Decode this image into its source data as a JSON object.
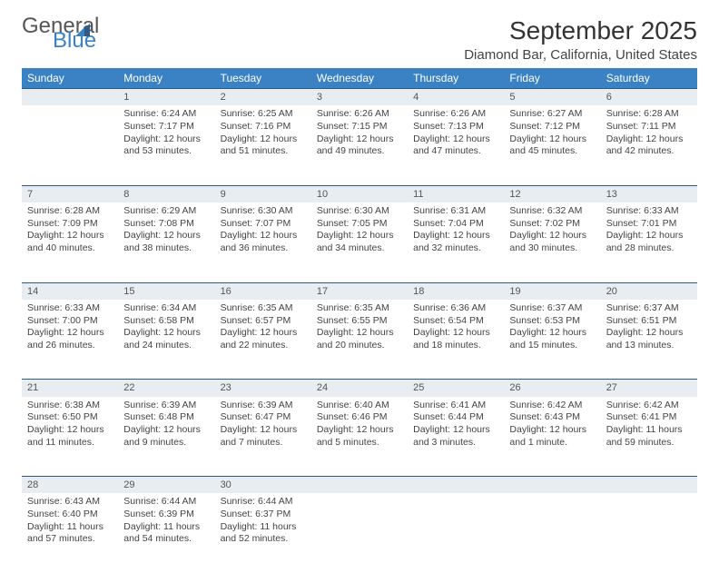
{
  "logo": {
    "text1": "General",
    "text2": "Blue"
  },
  "title": "September 2025",
  "location": "Diamond Bar, California, United States",
  "colors": {
    "header_bg": "#3b82c4",
    "header_text": "#ffffff",
    "daynum_bg": "#e8edf1",
    "daynum_border": "#2d5a8a",
    "text": "#444444"
  },
  "weekdays": [
    "Sunday",
    "Monday",
    "Tuesday",
    "Wednesday",
    "Thursday",
    "Friday",
    "Saturday"
  ],
  "weeks": [
    {
      "nums": [
        "",
        "1",
        "2",
        "3",
        "4",
        "5",
        "6"
      ],
      "cells": [
        null,
        {
          "sunrise": "Sunrise: 6:24 AM",
          "sunset": "Sunset: 7:17 PM",
          "day1": "Daylight: 12 hours",
          "day2": "and 53 minutes."
        },
        {
          "sunrise": "Sunrise: 6:25 AM",
          "sunset": "Sunset: 7:16 PM",
          "day1": "Daylight: 12 hours",
          "day2": "and 51 minutes."
        },
        {
          "sunrise": "Sunrise: 6:26 AM",
          "sunset": "Sunset: 7:15 PM",
          "day1": "Daylight: 12 hours",
          "day2": "and 49 minutes."
        },
        {
          "sunrise": "Sunrise: 6:26 AM",
          "sunset": "Sunset: 7:13 PM",
          "day1": "Daylight: 12 hours",
          "day2": "and 47 minutes."
        },
        {
          "sunrise": "Sunrise: 6:27 AM",
          "sunset": "Sunset: 7:12 PM",
          "day1": "Daylight: 12 hours",
          "day2": "and 45 minutes."
        },
        {
          "sunrise": "Sunrise: 6:28 AM",
          "sunset": "Sunset: 7:11 PM",
          "day1": "Daylight: 12 hours",
          "day2": "and 42 minutes."
        }
      ]
    },
    {
      "nums": [
        "7",
        "8",
        "9",
        "10",
        "11",
        "12",
        "13"
      ],
      "cells": [
        {
          "sunrise": "Sunrise: 6:28 AM",
          "sunset": "Sunset: 7:09 PM",
          "day1": "Daylight: 12 hours",
          "day2": "and 40 minutes."
        },
        {
          "sunrise": "Sunrise: 6:29 AM",
          "sunset": "Sunset: 7:08 PM",
          "day1": "Daylight: 12 hours",
          "day2": "and 38 minutes."
        },
        {
          "sunrise": "Sunrise: 6:30 AM",
          "sunset": "Sunset: 7:07 PM",
          "day1": "Daylight: 12 hours",
          "day2": "and 36 minutes."
        },
        {
          "sunrise": "Sunrise: 6:30 AM",
          "sunset": "Sunset: 7:05 PM",
          "day1": "Daylight: 12 hours",
          "day2": "and 34 minutes."
        },
        {
          "sunrise": "Sunrise: 6:31 AM",
          "sunset": "Sunset: 7:04 PM",
          "day1": "Daylight: 12 hours",
          "day2": "and 32 minutes."
        },
        {
          "sunrise": "Sunrise: 6:32 AM",
          "sunset": "Sunset: 7:02 PM",
          "day1": "Daylight: 12 hours",
          "day2": "and 30 minutes."
        },
        {
          "sunrise": "Sunrise: 6:33 AM",
          "sunset": "Sunset: 7:01 PM",
          "day1": "Daylight: 12 hours",
          "day2": "and 28 minutes."
        }
      ]
    },
    {
      "nums": [
        "14",
        "15",
        "16",
        "17",
        "18",
        "19",
        "20"
      ],
      "cells": [
        {
          "sunrise": "Sunrise: 6:33 AM",
          "sunset": "Sunset: 7:00 PM",
          "day1": "Daylight: 12 hours",
          "day2": "and 26 minutes."
        },
        {
          "sunrise": "Sunrise: 6:34 AM",
          "sunset": "Sunset: 6:58 PM",
          "day1": "Daylight: 12 hours",
          "day2": "and 24 minutes."
        },
        {
          "sunrise": "Sunrise: 6:35 AM",
          "sunset": "Sunset: 6:57 PM",
          "day1": "Daylight: 12 hours",
          "day2": "and 22 minutes."
        },
        {
          "sunrise": "Sunrise: 6:35 AM",
          "sunset": "Sunset: 6:55 PM",
          "day1": "Daylight: 12 hours",
          "day2": "and 20 minutes."
        },
        {
          "sunrise": "Sunrise: 6:36 AM",
          "sunset": "Sunset: 6:54 PM",
          "day1": "Daylight: 12 hours",
          "day2": "and 18 minutes."
        },
        {
          "sunrise": "Sunrise: 6:37 AM",
          "sunset": "Sunset: 6:53 PM",
          "day1": "Daylight: 12 hours",
          "day2": "and 15 minutes."
        },
        {
          "sunrise": "Sunrise: 6:37 AM",
          "sunset": "Sunset: 6:51 PM",
          "day1": "Daylight: 12 hours",
          "day2": "and 13 minutes."
        }
      ]
    },
    {
      "nums": [
        "21",
        "22",
        "23",
        "24",
        "25",
        "26",
        "27"
      ],
      "cells": [
        {
          "sunrise": "Sunrise: 6:38 AM",
          "sunset": "Sunset: 6:50 PM",
          "day1": "Daylight: 12 hours",
          "day2": "and 11 minutes."
        },
        {
          "sunrise": "Sunrise: 6:39 AM",
          "sunset": "Sunset: 6:48 PM",
          "day1": "Daylight: 12 hours",
          "day2": "and 9 minutes."
        },
        {
          "sunrise": "Sunrise: 6:39 AM",
          "sunset": "Sunset: 6:47 PM",
          "day1": "Daylight: 12 hours",
          "day2": "and 7 minutes."
        },
        {
          "sunrise": "Sunrise: 6:40 AM",
          "sunset": "Sunset: 6:46 PM",
          "day1": "Daylight: 12 hours",
          "day2": "and 5 minutes."
        },
        {
          "sunrise": "Sunrise: 6:41 AM",
          "sunset": "Sunset: 6:44 PM",
          "day1": "Daylight: 12 hours",
          "day2": "and 3 minutes."
        },
        {
          "sunrise": "Sunrise: 6:42 AM",
          "sunset": "Sunset: 6:43 PM",
          "day1": "Daylight: 12 hours",
          "day2": "and 1 minute."
        },
        {
          "sunrise": "Sunrise: 6:42 AM",
          "sunset": "Sunset: 6:41 PM",
          "day1": "Daylight: 11 hours",
          "day2": "and 59 minutes."
        }
      ]
    },
    {
      "nums": [
        "28",
        "29",
        "30",
        "",
        "",
        "",
        ""
      ],
      "cells": [
        {
          "sunrise": "Sunrise: 6:43 AM",
          "sunset": "Sunset: 6:40 PM",
          "day1": "Daylight: 11 hours",
          "day2": "and 57 minutes."
        },
        {
          "sunrise": "Sunrise: 6:44 AM",
          "sunset": "Sunset: 6:39 PM",
          "day1": "Daylight: 11 hours",
          "day2": "and 54 minutes."
        },
        {
          "sunrise": "Sunrise: 6:44 AM",
          "sunset": "Sunset: 6:37 PM",
          "day1": "Daylight: 11 hours",
          "day2": "and 52 minutes."
        },
        null,
        null,
        null,
        null
      ]
    }
  ]
}
